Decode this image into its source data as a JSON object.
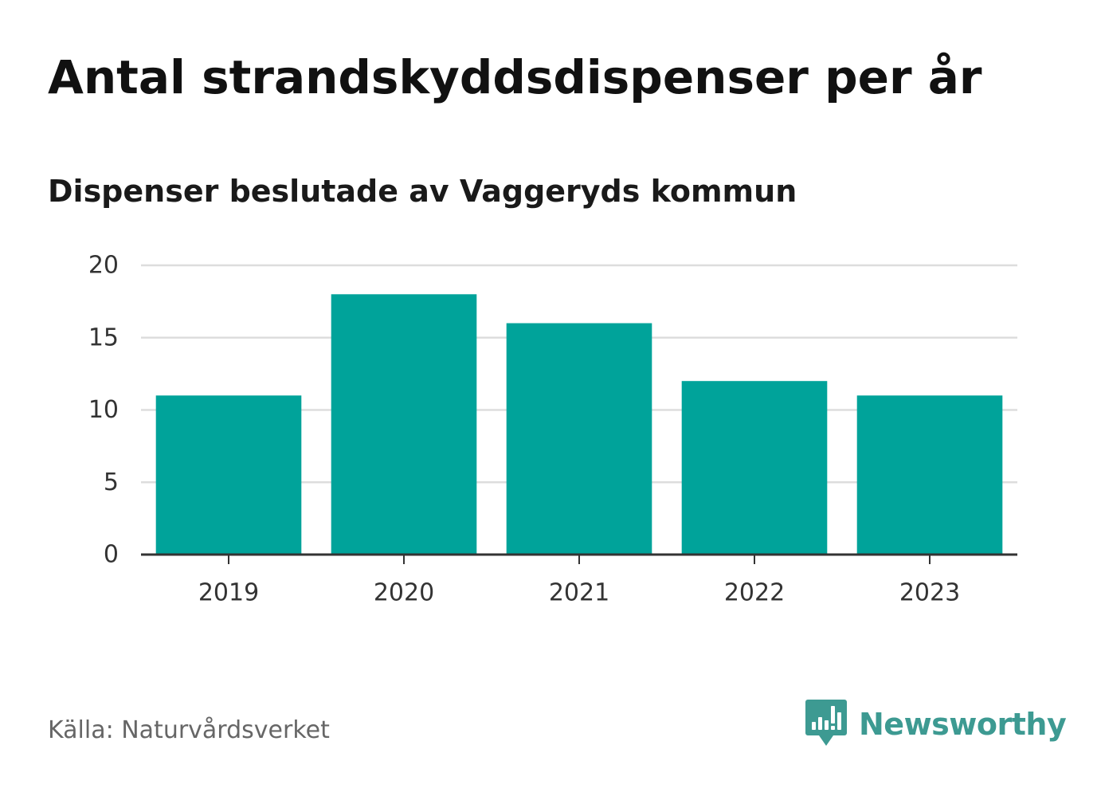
{
  "chart_data": {
    "type": "bar",
    "title": "Antal strandskyddsdispenser per år",
    "subtitle": "Dispenser beslutade av Vaggeryds kommun",
    "categories": [
      "2019",
      "2020",
      "2021",
      "2022",
      "2023"
    ],
    "values": [
      11,
      18,
      16,
      12,
      11
    ],
    "ylim": [
      0,
      20
    ],
    "yticks": [
      0,
      5,
      10,
      15,
      20
    ],
    "xlabel": "",
    "ylabel": "",
    "grid": true,
    "bar_color": "#00a39a",
    "grid_color": "#dddddd",
    "axis_color": "#333333"
  },
  "footer": {
    "source": "Källa: Naturvårdsverket",
    "brand": "Newsworthy",
    "brand_color": "#3d9a92",
    "brand_icon": "newsworthy-logo-icon"
  }
}
